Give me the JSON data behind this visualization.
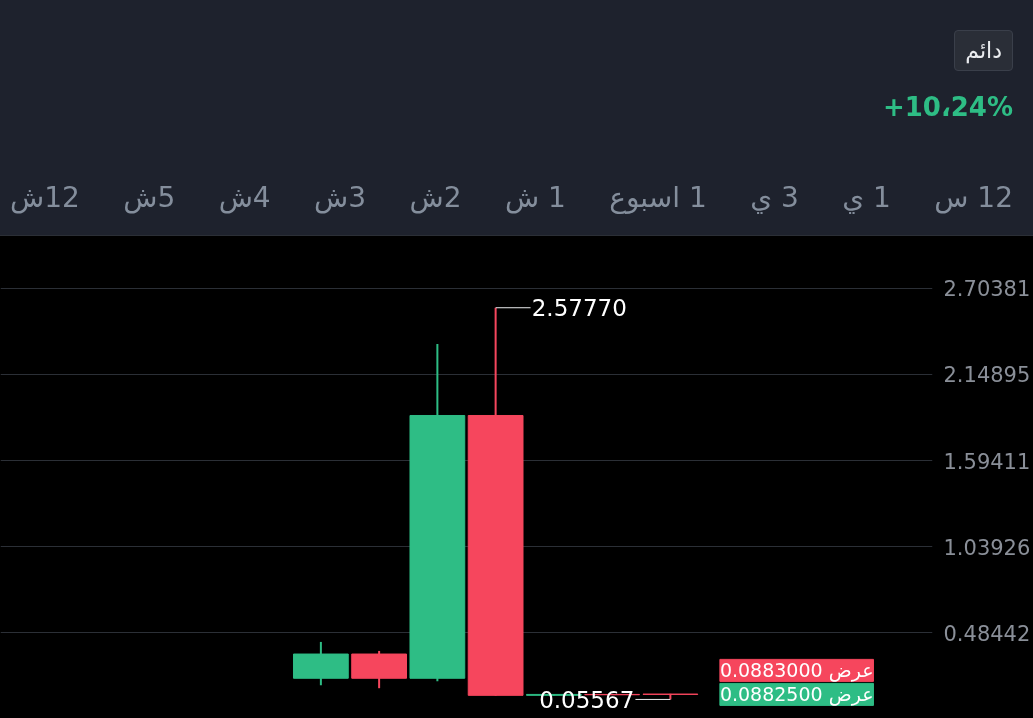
{
  "chart_data": {
    "type": "candlestick",
    "categories": [
      null,
      null,
      null,
      null,
      null,
      null,
      null,
      null,
      null,
      null,
      null,
      null,
      null,
      null,
      null,
      null
    ],
    "ohlc": [
      null,
      null,
      null,
      null,
      null,
      [
        0.192,
        0.426,
        0.147,
        0.348
      ],
      [
        0.348,
        0.368,
        0.128,
        0.192
      ],
      [
        0.192,
        2.345,
        0.173,
        1.884
      ],
      [
        1.884,
        2.5777,
        0.08,
        0.082
      ],
      [
        0.082,
        0.09,
        0.08,
        0.088
      ],
      [
        0.088,
        0.089,
        0.085,
        0.086
      ],
      [
        0.09,
        0.092,
        0.05567,
        0.0883
      ],
      null,
      null,
      null,
      null
    ],
    "colors": [
      null,
      null,
      null,
      null,
      null,
      "#2ebd85",
      "#f6465d",
      "#2ebd85",
      "#f6465d",
      "#2ebd85",
      "#f6465d",
      "#f6465d",
      null,
      null,
      null,
      null
    ],
    "ylim": [
      -0.067,
      3.03
    ],
    "yticks": [
      0.48442,
      1.03926,
      1.59411,
      2.14895,
      2.70381
    ],
    "grid": "y",
    "annotations": [
      "+10،24%",
      "دائم",
      "12 س",
      "1 ي",
      "3 ي",
      "1 اسبوع",
      "1 ش",
      "2ش",
      "3ش",
      "4ش",
      "5ش",
      "12ش",
      "2.57770",
      "0.05567",
      "عرض 0.0883000",
      "عرض 0.0882500"
    ]
  }
}
